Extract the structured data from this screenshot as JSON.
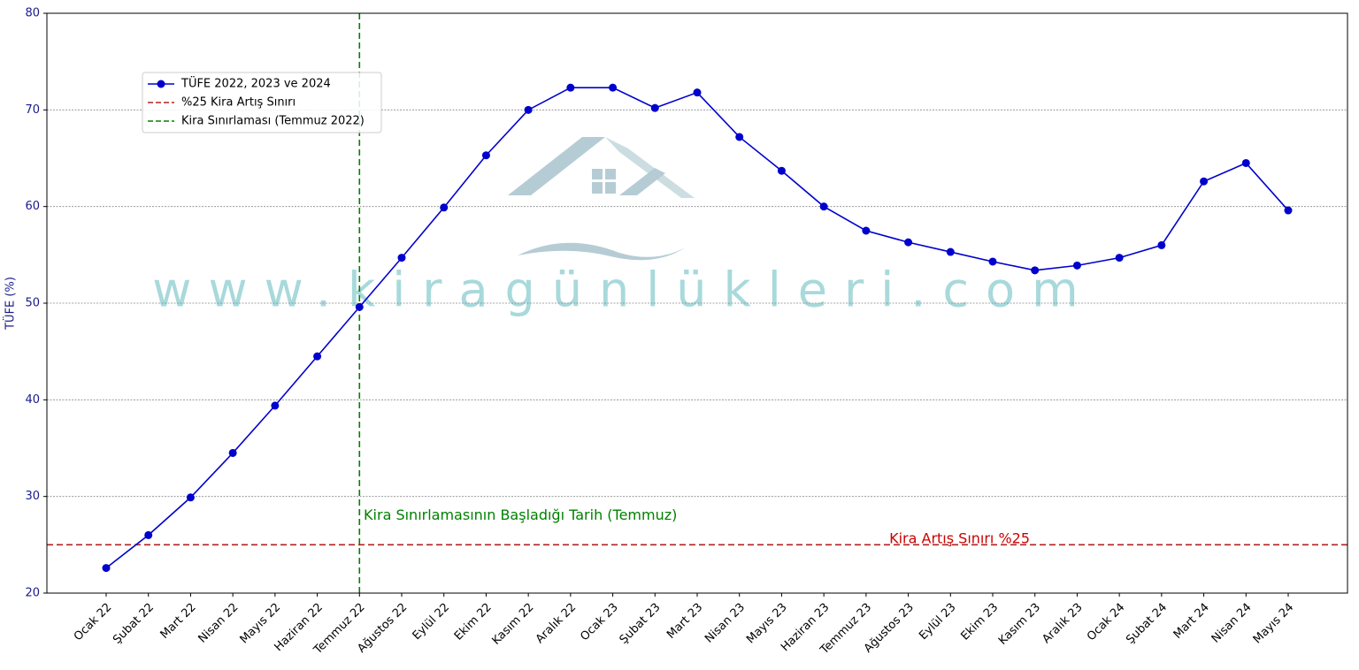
{
  "chart_data": {
    "type": "line",
    "y_label": "TÜFE (%)",
    "categories": [
      "Ocak 22",
      "Şubat 22",
      "Mart 22",
      "Nisan 22",
      "Mayıs 22",
      "Haziran 22",
      "Temmuz 22",
      "Ağustos 22",
      "Eylül 22",
      "Ekim 22",
      "Kasım 22",
      "Aralık 22",
      "Ocak 23",
      "Şubat 23",
      "Mart 23",
      "Nisan 23",
      "Mayıs 23",
      "Haziran 23",
      "Temmuz 23",
      "Ağustos 23",
      "Eylül 23",
      "Ekim 23",
      "Kasım 23",
      "Aralık 23",
      "Ocak 24",
      "Şubat 24",
      "Mart 24",
      "Nisan 24",
      "Mayıs 24"
    ],
    "series": [
      {
        "name": "TÜFE 2022, 2023 ve 2024",
        "color": "#0000cd",
        "values": [
          22.6,
          26.0,
          29.9,
          34.5,
          39.4,
          44.5,
          49.6,
          54.7,
          59.9,
          65.3,
          70.0,
          72.3,
          72.3,
          70.2,
          71.8,
          67.2,
          63.7,
          60.0,
          57.5,
          56.3,
          55.3,
          54.3,
          53.4,
          53.9,
          54.7,
          56.0,
          62.6,
          64.5,
          59.6
        ]
      }
    ],
    "hlines": [
      {
        "name": "%25 Kira Artış Sınırı",
        "value": 25,
        "color": "#b22222"
      }
    ],
    "vlines": [
      {
        "name": "Kira Sınırlaması (Temmuz 2022)",
        "x": "Temmuz 22",
        "color": "#008000"
      }
    ],
    "annotations": [
      {
        "text": "Kira Sınırlamasının Başladığı Tarih (Temmuz)",
        "x": 6.1,
        "y": 28,
        "color": "#008000"
      },
      {
        "text": "Kira Artış Sınırı %25",
        "x": 18.55,
        "y": 25.6,
        "color": "#cc0000"
      }
    ],
    "watermark": "www.kiragünlükleri.com",
    "ylim": [
      20,
      80
    ],
    "yticks": [
      20,
      30,
      40,
      50,
      60,
      70,
      80
    ],
    "grid": true,
    "legend": "upper left"
  }
}
